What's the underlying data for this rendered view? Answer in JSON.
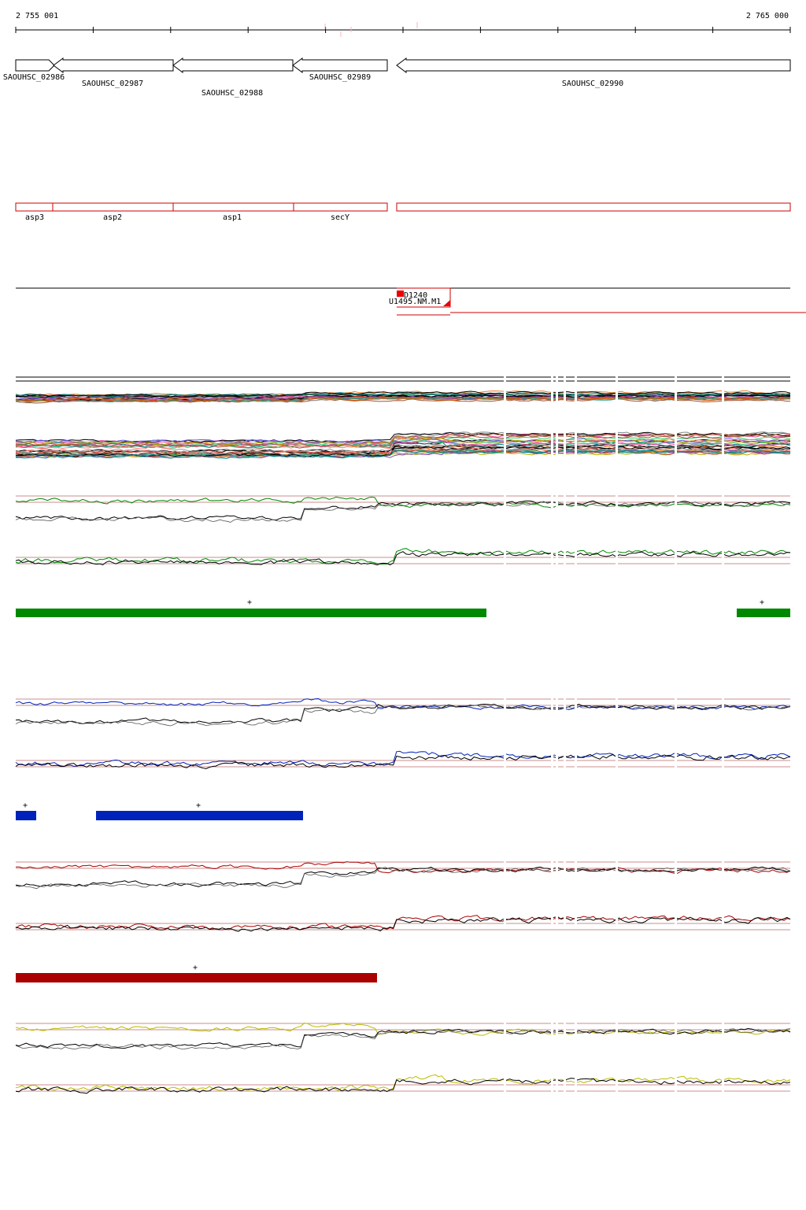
{
  "scale": {
    "start_label": "2 755 001",
    "end_label": "2 765 000"
  },
  "genes": [
    {
      "id": "SAOUHSC_02986",
      "strand": "+"
    },
    {
      "id": "SAOUHSC_02987",
      "strand": "-"
    },
    {
      "id": "SAOUHSC_02988",
      "strand": "-"
    },
    {
      "id": "SAOUHSC_02989",
      "strand": "-"
    },
    {
      "id": "SAOUHSC_02990",
      "strand": "-"
    }
  ],
  "features": [
    {
      "name": "asp3"
    },
    {
      "name": "asp2"
    },
    {
      "name": "asp1"
    },
    {
      "name": "secY"
    },
    {
      "name": ""
    }
  ],
  "transcripts": {
    "labels": [
      "D1240",
      "U1495.NM.M1"
    ]
  },
  "condition_colors": {
    "green": "#008800",
    "blue": "#0022bb",
    "red": "#aa0000",
    "yellow": "#bbbb00",
    "reference": "#000000",
    "feature_outline": "#cc0000"
  },
  "segment_markers": {
    "green": [
      "+",
      "+"
    ],
    "blue": [
      "+",
      "+"
    ],
    "red": [
      "+"
    ]
  }
}
